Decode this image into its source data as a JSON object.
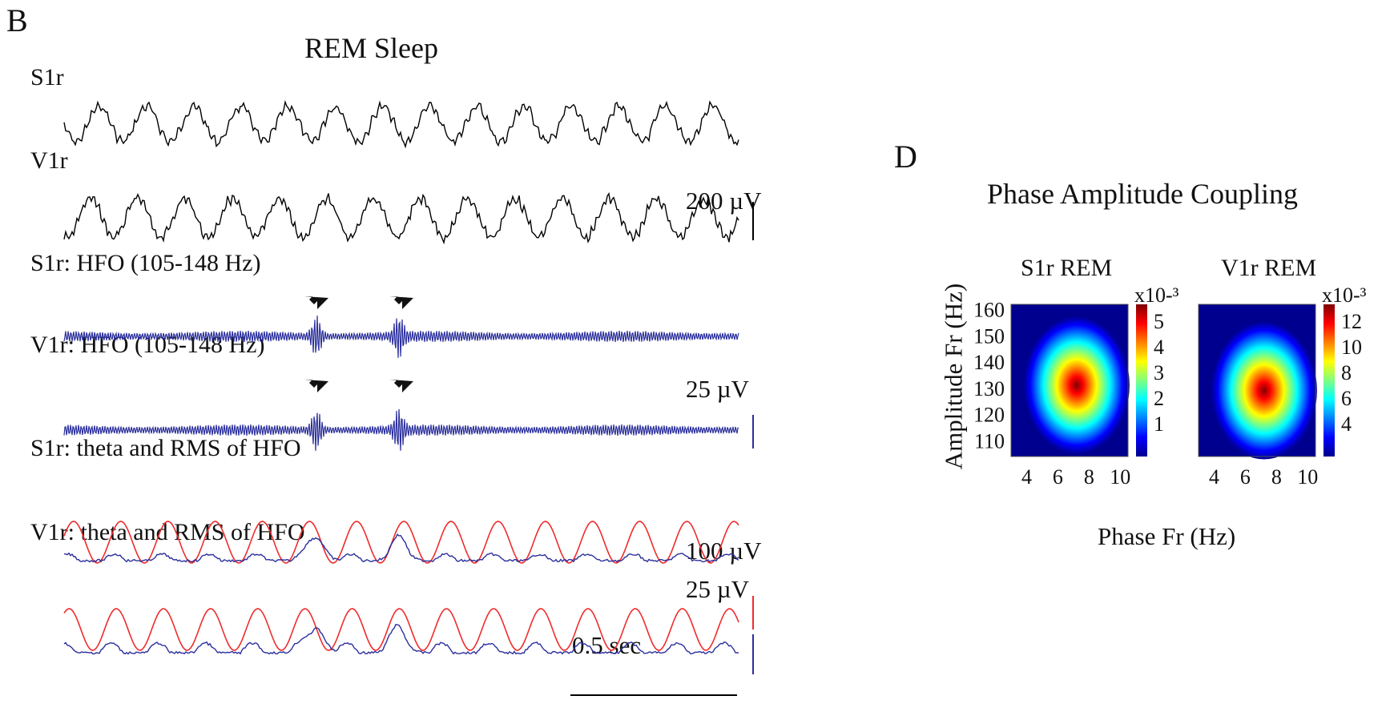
{
  "panel_b": {
    "letter": "B",
    "title": "REM Sleep",
    "traces": [
      {
        "label": "S1r",
        "kind": "raw"
      },
      {
        "label": "V1r",
        "kind": "raw"
      },
      {
        "label": "S1r: HFO (105-148 Hz)",
        "kind": "hfo"
      },
      {
        "label": "V1r: HFO (105-148 Hz)",
        "kind": "hfo"
      },
      {
        "label": "S1r: theta and RMS of HFO",
        "kind": "theta_rms"
      },
      {
        "label": "V1r: theta and RMS of HFO",
        "kind": "theta_rms"
      }
    ],
    "scalebars": {
      "raw": "200 µV",
      "hfo": "25 µV",
      "theta": "100 µV",
      "rms": "25 µV",
      "time": "0.5 sec"
    },
    "colors": {
      "raw": "#000000",
      "hfo": "#2b2f9c",
      "theta": "#ef2c2c",
      "rms": "#2b2f9c"
    }
  },
  "panel_d": {
    "letter": "D",
    "title": "Phase Amplitude Coupling",
    "xlabel": "Phase Fr (Hz)",
    "ylabel": "Amplitude Fr (Hz)",
    "chart_data": [
      {
        "type": "heatmap",
        "title": "S1r REM",
        "x_ticks": [
          "4",
          "6",
          "8",
          "10"
        ],
        "y_ticks": [
          "160",
          "150",
          "140",
          "130",
          "120",
          "110"
        ],
        "colorbar_label": "x10-³",
        "colorbar_ticks": [
          "5",
          "4",
          "3",
          "2",
          "1"
        ],
        "peak": {
          "phase_hz": 7,
          "amplitude_hz": 133
        }
      },
      {
        "type": "heatmap",
        "title": "V1r REM",
        "x_ticks": [
          "4",
          "6",
          "8",
          "10"
        ],
        "y_ticks": [],
        "colorbar_label": "x10-³",
        "colorbar_ticks": [
          "12",
          "10",
          "8",
          "6",
          "4"
        ],
        "peak": {
          "phase_hz": 7,
          "amplitude_hz": 131
        }
      }
    ]
  }
}
